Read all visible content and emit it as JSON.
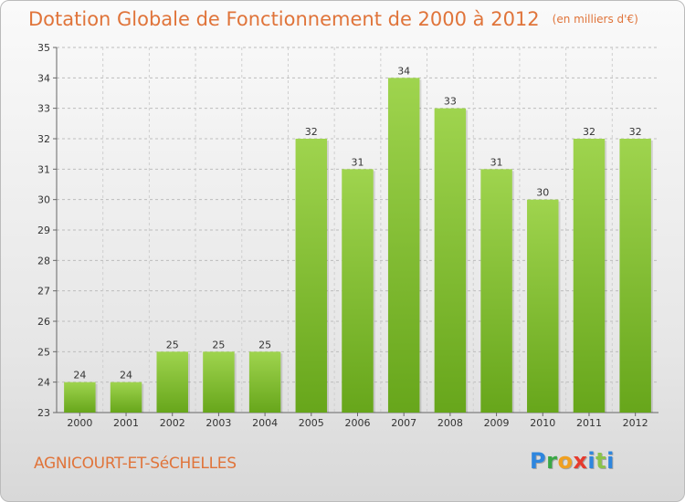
{
  "title": "Dotation Globale de Fonctionnement de 2000 à 2012",
  "unit": "(en milliers d'€)",
  "commune": "AGNICOURT-ET-SéCHELLES",
  "logo": {
    "letters": [
      "P",
      "r",
      "o",
      "x",
      "i",
      "t",
      "i"
    ]
  },
  "colors": {
    "bar_light": "#9fd44e",
    "bar_dark": "#67a61b",
    "accent": "#e0743a"
  },
  "chart_data": {
    "type": "bar",
    "title": "Dotation Globale de Fonctionnement de 2000 à 2012",
    "subtitle": "(en milliers d'€)",
    "xlabel": "",
    "ylabel": "",
    "categories": [
      "2000",
      "2001",
      "2002",
      "2003",
      "2004",
      "2005",
      "2006",
      "2007",
      "2008",
      "2009",
      "2010",
      "2011",
      "2012"
    ],
    "values": [
      24,
      24,
      25,
      25,
      25,
      32,
      31,
      34,
      33,
      31,
      30,
      32,
      32
    ],
    "ylim": [
      23,
      35
    ],
    "yticks": [
      23,
      24,
      25,
      26,
      27,
      28,
      29,
      30,
      31,
      32,
      33,
      34,
      35
    ],
    "grid": true,
    "legend": "none"
  }
}
